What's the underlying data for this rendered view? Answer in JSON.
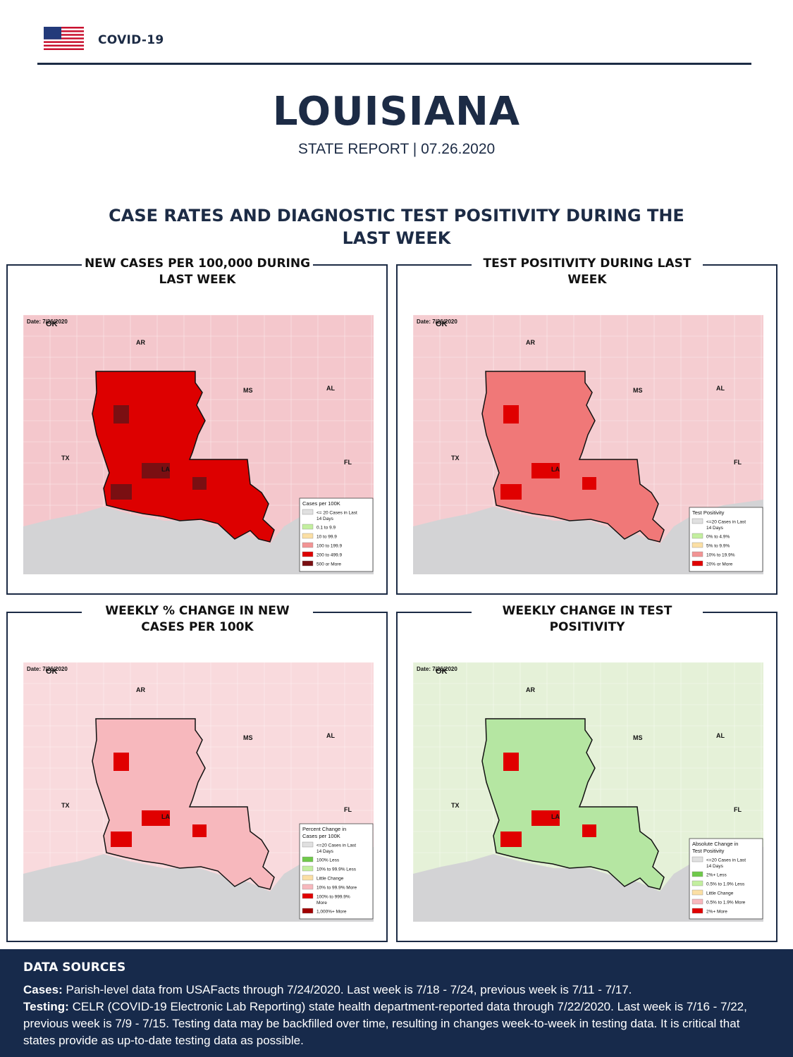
{
  "header": {
    "brand": "COVID-19",
    "state": "LOUISIANA",
    "subtitle": "STATE REPORT | 07.26.2020"
  },
  "section_title": "CASE RATES AND DIAGNOSTIC TEST POSITIVITY DURING THE LAST WEEK",
  "map_labels": {
    "date": "Date: 7/26/2020",
    "ok": "OK",
    "ar": "AR",
    "ms": "MS",
    "al": "AL",
    "tx": "TX",
    "la": "LA",
    "fl": "FL"
  },
  "panels": [
    {
      "title": "NEW CASES PER 100,000 DURING LAST WEEK",
      "fill": "#dd0000",
      "neighbor": "#f4c7cc",
      "hot": "#7a0f12",
      "legend": {
        "title": [
          "Cases per 100K"
        ],
        "items": [
          {
            "color": "#e0e0e0",
            "lines": [
              "<= 20 Cases in Last",
              "14 Days"
            ]
          },
          {
            "color": "#c3ef9f",
            "lines": [
              "0.1 to 9.9"
            ]
          },
          {
            "color": "#fbdfa4",
            "lines": [
              "10 to 99.9"
            ]
          },
          {
            "color": "#f29494",
            "lines": [
              "100 to 199.9"
            ]
          },
          {
            "color": "#dd0000",
            "lines": [
              "200 to 499.9"
            ]
          },
          {
            "color": "#7a0f12",
            "lines": [
              "500 or More"
            ]
          }
        ]
      }
    },
    {
      "title": "TEST POSITIVITY DURING LAST WEEK",
      "fill": "#f07878",
      "neighbor": "#f5cdd1",
      "hot": "#e00000",
      "legend": {
        "title": [
          "Test Positivity"
        ],
        "items": [
          {
            "color": "#e0e0e0",
            "lines": [
              "<=20 Cases in Last",
              "14 Days"
            ]
          },
          {
            "color": "#c3ef9f",
            "lines": [
              "0% to 4.9%"
            ]
          },
          {
            "color": "#fbdfa4",
            "lines": [
              "5% to 9.9%"
            ]
          },
          {
            "color": "#f29494",
            "lines": [
              "10% to 19.9%"
            ]
          },
          {
            "color": "#e00000",
            "lines": [
              "20% or More"
            ]
          }
        ]
      }
    },
    {
      "title": "WEEKLY % CHANGE IN NEW CASES PER 100K",
      "fill": "#f7b8bd",
      "neighbor": "#f9dadd",
      "hot": "#e00000",
      "legend": {
        "title": [
          "Percent Change in",
          "Cases per 100K"
        ],
        "items": [
          {
            "color": "#e0e0e0",
            "lines": [
              "<=20 Cases in Last",
              "14 Days"
            ]
          },
          {
            "color": "#6fc94a",
            "lines": [
              "100% Less"
            ]
          },
          {
            "color": "#c3ef9f",
            "lines": [
              "10% to 99.9% Less"
            ]
          },
          {
            "color": "#fbdfa4",
            "lines": [
              "Little Change"
            ]
          },
          {
            "color": "#f7b8bd",
            "lines": [
              "10% to 99.9% More"
            ]
          },
          {
            "color": "#e00000",
            "lines": [
              "100% to 999.9%",
              "More"
            ]
          },
          {
            "color": "#a00000",
            "lines": [
              "1,000%+ More"
            ]
          }
        ]
      }
    },
    {
      "title": "WEEKLY CHANGE IN TEST POSITIVITY",
      "fill": "#b5e6a2",
      "neighbor": "#e5f1d8",
      "hot": "#e00000",
      "legend": {
        "title": [
          "Absolute Change in",
          "Test Positivity"
        ],
        "items": [
          {
            "color": "#e0e0e0",
            "lines": [
              "<=20 Cases in Last",
              "14 Days"
            ]
          },
          {
            "color": "#6fc94a",
            "lines": [
              "2%+ Less"
            ]
          },
          {
            "color": "#c3ef9f",
            "lines": [
              "0.5% to 1.9% Less"
            ]
          },
          {
            "color": "#fbdfa4",
            "lines": [
              "Little Change"
            ]
          },
          {
            "color": "#f7b8bd",
            "lines": [
              "0.5% to 1.9% More"
            ]
          },
          {
            "color": "#e00000",
            "lines": [
              "2%+ More"
            ]
          }
        ]
      }
    }
  ],
  "footer": {
    "title": "DATA SOURCES",
    "cases_label": "Cases:",
    "cases_text": "Parish-level data from USAFacts through 7/24/2020. Last week is 7/18 - 7/24, previous week is 7/11 - 7/17.",
    "testing_label": "Testing:",
    "testing_text": "CELR (COVID-19 Electronic Lab Reporting) state health department-reported data through 7/22/2020. Last week is 7/16 - 7/22, previous week is 7/9 - 7/15. Testing data may be backfilled over time, resulting in changes week-to-week in testing data. It is critical that states provide as up-to-date testing data as possible."
  }
}
